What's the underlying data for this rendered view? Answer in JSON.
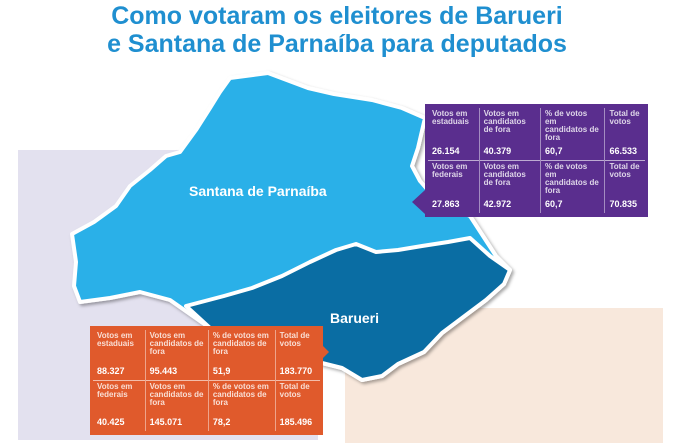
{
  "title": {
    "line1": "Como votaram os eleitores de Barueri",
    "line2": "e Santana de Parnaíba para deputados"
  },
  "colors": {
    "title": "#1f8fd0",
    "santana": "#29b0e8",
    "barueri": "#0a6da3",
    "purple_box": "#5a2e8e",
    "orange_box": "#e05a2c",
    "bg_left": "#e3e1ef",
    "bg_right": "#f8e8dc"
  },
  "map": {
    "santana_label": "Santana de Parnaíba",
    "barueri_label": "Barueri"
  },
  "santana_table": {
    "rows": [
      {
        "headers": [
          "Votos em estaduais",
          "Votos em candidatos de fora",
          "% de votos em candidatos de fora",
          "Total de votos"
        ],
        "values": [
          "26.154",
          "40.379",
          "60,7",
          "66.533"
        ]
      },
      {
        "headers": [
          "Votos em federais",
          "Votos em candidatos de fora",
          "% de votos em candidatos de fora",
          "Total de votos"
        ],
        "values": [
          "27.863",
          "42.972",
          "60,7",
          "70.835"
        ]
      }
    ]
  },
  "barueri_table": {
    "rows": [
      {
        "headers": [
          "Votos em estaduais",
          "Votos em candidatos de fora",
          "% de votos em candidatos de fora",
          "Total de votos"
        ],
        "values": [
          "88.327",
          "95.443",
          "51,9",
          "183.770"
        ]
      },
      {
        "headers": [
          "Votos em federais",
          "Votos em candidatos de fora",
          "% de votos em candidatos de fora",
          "Total de votos"
        ],
        "values": [
          "40.425",
          "145.071",
          "78,2",
          "185.496"
        ]
      }
    ]
  }
}
